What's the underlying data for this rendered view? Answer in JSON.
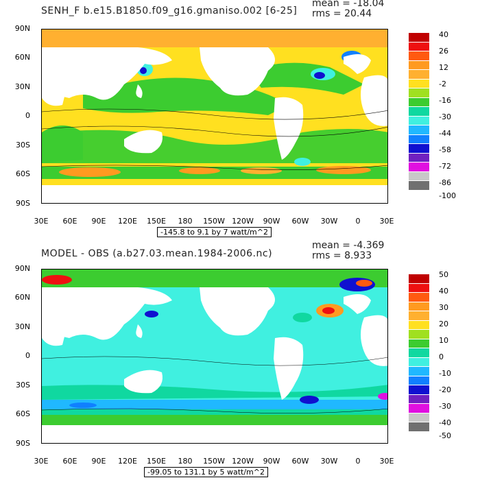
{
  "panels": [
    {
      "title": "SENH_F b.e15.B1850.f09_g16.gmaniso.002 [6-25]",
      "mean": "mean = -18.04",
      "rms": "rms = 20.44",
      "range": "-145.8 to 9.1 by 7 watt/m^2",
      "yticks": [
        "90N",
        "60N",
        "30N",
        "0",
        "30S",
        "60S",
        "90S"
      ],
      "xticks": [
        "30E",
        "60E",
        "90E",
        "120E",
        "150E",
        "180",
        "150W",
        "120W",
        "90W",
        "60W",
        "30W",
        "0",
        "30E"
      ],
      "colorbar": {
        "labels": [
          "40",
          "26",
          "12",
          "-2",
          "-16",
          "-30",
          "-44",
          "-58",
          "-72",
          "-86",
          "-100"
        ],
        "colors": [
          "#c00000",
          "#ee1010",
          "#ff5a10",
          "#ff9a20",
          "#ffb030",
          "#ffe020",
          "#a0e020",
          "#3ccc30",
          "#10d8a0",
          "#40f0e0",
          "#20b8ff",
          "#1080ff",
          "#1010d0",
          "#7020c0",
          "#e010e0",
          "#c8c8c8",
          "#707070"
        ]
      }
    },
    {
      "title": "MODEL - OBS (a.b27.03.mean.1984-2006.nc)",
      "mean": "mean = -4.369",
      "rms": "rms = 8.933",
      "range": "-99.05 to 131.1 by 5 watt/m^2",
      "yticks": [
        "90N",
        "60N",
        "30N",
        "0",
        "30S",
        "60S",
        "90S"
      ],
      "xticks": [
        "30E",
        "60E",
        "90E",
        "120E",
        "150E",
        "180",
        "150W",
        "120W",
        "90W",
        "60W",
        "30W",
        "0",
        "30E"
      ],
      "colorbar": {
        "labels": [
          "50",
          "40",
          "30",
          "20",
          "10",
          "0",
          "-10",
          "-20",
          "-30",
          "-40",
          "-50"
        ],
        "colors": [
          "#c00000",
          "#ee1010",
          "#ff5a10",
          "#ff9a20",
          "#ffb030",
          "#ffe020",
          "#a0e020",
          "#3ccc30",
          "#10d8a0",
          "#40f0e0",
          "#20b8ff",
          "#1080ff",
          "#1010d0",
          "#7020c0",
          "#e010e0",
          "#c8c8c8",
          "#707070"
        ]
      }
    }
  ]
}
